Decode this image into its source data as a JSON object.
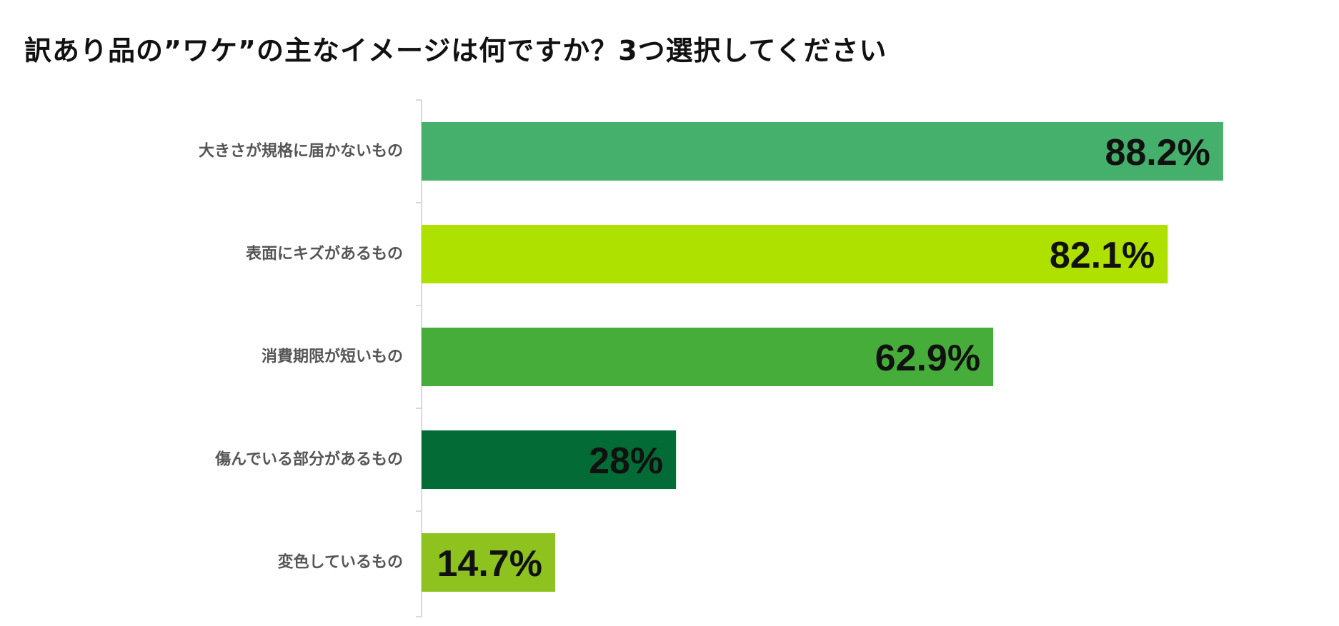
{
  "title": "訳あり品の”ワケ”の主なイメージは何ですか？3つ選択してください",
  "chart_data": {
    "type": "bar",
    "orientation": "horizontal",
    "title": "訳あり品の”ワケ”の主なイメージは何ですか？3つ選択してください",
    "xlabel": "",
    "ylabel": "",
    "xlim": [
      0,
      100
    ],
    "grid": false,
    "legend": "none",
    "categories": [
      "大きさが規格に届かないもの",
      "表面にキズがあるもの",
      "消費期限が短いもの",
      "傷んでいる部分があるもの",
      "変色しているもの"
    ],
    "values": [
      88.2,
      82.1,
      62.9,
      28,
      14.7
    ],
    "value_labels": [
      "88.2%",
      "82.1%",
      "62.9%",
      "28%",
      "14.7%"
    ],
    "colors": [
      "#44b06c",
      "#aee000",
      "#47ad3a",
      "#036b36",
      "#8dc21f"
    ],
    "axis_color": "#d9d9d9"
  }
}
